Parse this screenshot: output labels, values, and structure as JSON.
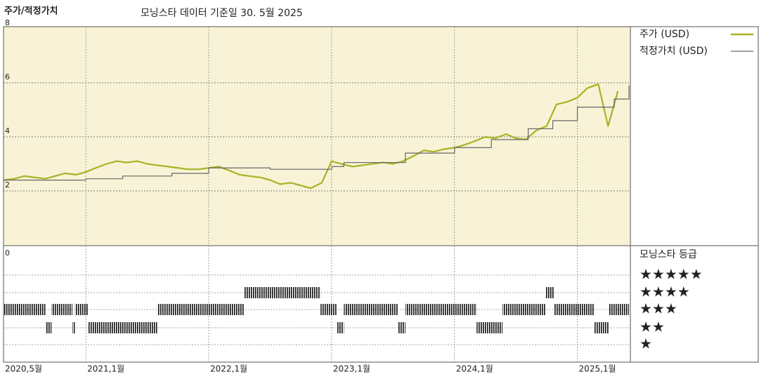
{
  "chart_data": {
    "type": "line",
    "title": "주가/적정가치",
    "subtitle": "모닝스타 데이터 기준일 30. 5월 2025",
    "xlim": [
      2020.33,
      2025.42
    ],
    "xticks": [
      {
        "value": 2020.33,
        "label": "2020,5월"
      },
      {
        "value": 2021,
        "label": "2021,1월"
      },
      {
        "value": 2022,
        "label": "2022,1월"
      },
      {
        "value": 2023,
        "label": "2023,1월"
      },
      {
        "value": 2024,
        "label": "2024,1월"
      },
      {
        "value": 2025,
        "label": "2025,1월"
      }
    ],
    "ylim": [
      0,
      8
    ],
    "yticks": [
      0,
      2,
      4,
      6,
      8
    ],
    "grid": true,
    "series": [
      {
        "name": "주가 (USD)",
        "color": "#a8b224",
        "step": false,
        "x": [
          2020.33,
          2020.42,
          2020.5,
          2020.58,
          2020.67,
          2020.75,
          2020.83,
          2020.92,
          2021,
          2021.08,
          2021.17,
          2021.25,
          2021.33,
          2021.42,
          2021.5,
          2021.58,
          2021.67,
          2021.75,
          2021.83,
          2021.92,
          2022,
          2022.08,
          2022.17,
          2022.25,
          2022.33,
          2022.42,
          2022.5,
          2022.58,
          2022.67,
          2022.75,
          2022.83,
          2022.92,
          2023,
          2023.08,
          2023.17,
          2023.25,
          2023.33,
          2023.42,
          2023.5,
          2023.58,
          2023.67,
          2023.75,
          2023.83,
          2023.92,
          2024,
          2024.08,
          2024.17,
          2024.25,
          2024.33,
          2024.42,
          2024.5,
          2024.58,
          2024.67,
          2024.75,
          2024.83,
          2024.92,
          2025,
          2025.08,
          2025.17,
          2025.25,
          2025.33
        ],
        "values": [
          2.4,
          2.45,
          2.55,
          2.5,
          2.45,
          2.55,
          2.65,
          2.6,
          2.7,
          2.85,
          3.0,
          3.1,
          3.05,
          3.1,
          3.0,
          2.95,
          2.9,
          2.85,
          2.8,
          2.8,
          2.85,
          2.9,
          2.75,
          2.6,
          2.55,
          2.5,
          2.4,
          2.25,
          2.3,
          2.2,
          2.1,
          2.3,
          3.1,
          3.0,
          2.9,
          2.95,
          3.0,
          3.05,
          3.0,
          3.1,
          3.3,
          3.5,
          3.45,
          3.55,
          3.6,
          3.7,
          3.85,
          4.0,
          3.95,
          4.1,
          3.95,
          3.9,
          4.25,
          4.4,
          5.2,
          5.3,
          5.45,
          5.8,
          5.95,
          4.4,
          5.7
        ]
      },
      {
        "name": "적정가치 (USD)",
        "color": "#666666",
        "step": true,
        "x": [
          2020.33,
          2021,
          2021.3,
          2021.7,
          2022,
          2022.5,
          2023,
          2023.1,
          2023.6,
          2024,
          2024.3,
          2024.6,
          2024.8,
          2025,
          2025.3,
          2025.42
        ],
        "values": [
          2.4,
          2.45,
          2.55,
          2.65,
          2.85,
          2.8,
          2.9,
          3.05,
          3.4,
          3.6,
          3.9,
          4.3,
          4.6,
          5.1,
          5.4,
          5.9
        ]
      }
    ],
    "rating_title": "모닝스타 등급",
    "rating_labels": [
      "★★★★★",
      "★★★★",
      "★★★",
      "★★",
      "★"
    ],
    "ratings": {
      "start": [
        2020.33,
        2020.67,
        2020.72,
        2020.89,
        2020.91,
        2021.02,
        2021.58,
        2022.29,
        2022.91,
        2023.04,
        2023.1,
        2023.54,
        2023.6,
        2024.18,
        2024.39,
        2024.74,
        2024.81,
        2025.14,
        2025.26
      ],
      "end": [
        2020.67,
        2020.72,
        2020.89,
        2020.91,
        2021.02,
        2021.58,
        2022.29,
        2022.91,
        2023.04,
        2023.1,
        2023.54,
        2023.6,
        2024.18,
        2024.39,
        2024.74,
        2024.81,
        2025.14,
        2025.26,
        2025.42
      ],
      "stars": [
        3,
        2,
        3,
        2,
        3,
        2,
        3,
        4,
        3,
        2,
        3,
        2,
        3,
        2,
        3,
        4,
        3,
        2,
        3
      ]
    }
  }
}
